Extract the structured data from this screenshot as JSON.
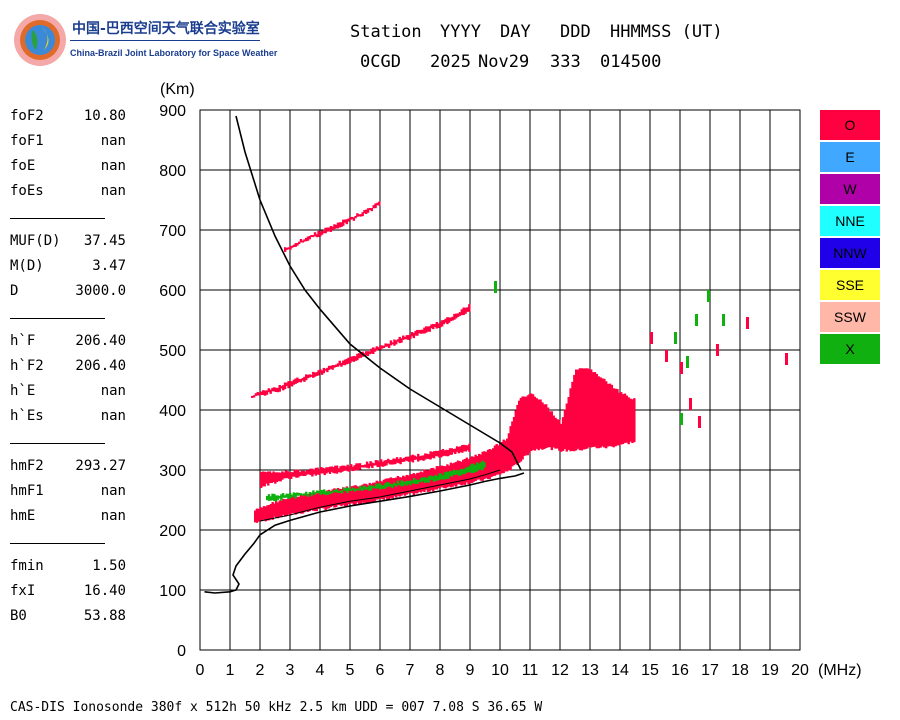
{
  "header": {
    "logo_text": "中国-巴西空间天气联合实验室",
    "logo_subtitle": "China-Brazil Joint Laboratory for Space Weather",
    "col_labels": [
      "Station",
      "YYYY",
      "DAY",
      "DDD",
      "HHMMSS (UT)"
    ],
    "station": "0CGD",
    "year": "2025",
    "day": "Nov29",
    "ddd": "333",
    "time": "014500"
  },
  "params": [
    {
      "label": "foF2",
      "value": "10.80"
    },
    {
      "label": "foF1",
      "value": "nan"
    },
    {
      "label": "foE",
      "value": "nan"
    },
    {
      "label": "foEs",
      "value": "nan"
    },
    {
      "label": "MUF(D)",
      "value": "37.45"
    },
    {
      "label": "M(D)",
      "value": "3.47"
    },
    {
      "label": "D",
      "value": "3000.0"
    },
    {
      "label": "h`F",
      "value": "206.40"
    },
    {
      "label": "h`F2",
      "value": "206.40"
    },
    {
      "label": "h`E",
      "value": "nan"
    },
    {
      "label": "h`Es",
      "value": "nan"
    },
    {
      "label": "hmF2",
      "value": "293.27"
    },
    {
      "label": "hmF1",
      "value": "nan"
    },
    {
      "label": "hmE",
      "value": "nan"
    },
    {
      "label": "fmin",
      "value": "1.50"
    },
    {
      "label": "fxI",
      "value": "16.40"
    },
    {
      "label": "B0",
      "value": "53.88"
    }
  ],
  "legend": [
    {
      "label": "O",
      "color": "#ff0040"
    },
    {
      "label": "E",
      "color": "#40a8ff"
    },
    {
      "label": "W",
      "color": "#b000a8"
    },
    {
      "label": "NNE",
      "color": "#20ffff"
    },
    {
      "label": "NNW",
      "color": "#2000e8"
    },
    {
      "label": "SSE",
      "color": "#ffff30"
    },
    {
      "label": "SSW",
      "color": "#ffb8a8"
    },
    {
      "label": "X",
      "color": "#10b010"
    }
  ],
  "footer": "CAS-DIS Ionosonde 380f x 512h 50 kHz 2.5 km UDD = 007 7.08 S 36.65 W",
  "chart_data": {
    "type": "scatter",
    "title": "",
    "xlabel": "(MHz)",
    "ylabel": "(Km)",
    "xlim": [
      0,
      20
    ],
    "ylim": [
      0,
      900
    ],
    "x_ticks": [
      0,
      1,
      2,
      3,
      4,
      5,
      6,
      7,
      8,
      9,
      10,
      11,
      12,
      13,
      14,
      15,
      16,
      17,
      18,
      19,
      20
    ],
    "y_ticks": [
      0,
      100,
      200,
      300,
      400,
      500,
      600,
      700,
      800,
      900
    ],
    "grid": true,
    "legend_position": "right",
    "series": [
      {
        "name": "O",
        "color": "#ff0040",
        "mode": "band",
        "points": [
          [
            1.8,
            210,
            235
          ],
          [
            2.5,
            218,
            250
          ],
          [
            3.5,
            228,
            262
          ],
          [
            4.5,
            236,
            270
          ],
          [
            5.5,
            244,
            278
          ],
          [
            6.5,
            252,
            290
          ],
          [
            7.5,
            262,
            302
          ],
          [
            8.5,
            272,
            315
          ],
          [
            9.5,
            282,
            333
          ],
          [
            10.2,
            295,
            355
          ],
          [
            10.6,
            310,
            420
          ],
          [
            11.0,
            330,
            430
          ],
          [
            11.5,
            335,
            410
          ],
          [
            12.0,
            330,
            380
          ],
          [
            12.5,
            330,
            470
          ],
          [
            13.0,
            335,
            470
          ],
          [
            13.5,
            335,
            450
          ],
          [
            14.0,
            340,
            430
          ],
          [
            14.5,
            345,
            420
          ]
        ]
      },
      {
        "name": "O",
        "color": "#ff0040",
        "mode": "band",
        "points": [
          [
            1.7,
            418,
            428
          ],
          [
            2.5,
            428,
            440
          ],
          [
            3.5,
            448,
            460
          ],
          [
            4.5,
            468,
            480
          ],
          [
            5.5,
            488,
            500
          ],
          [
            6.5,
            508,
            520
          ],
          [
            7.5,
            528,
            540
          ],
          [
            8.5,
            548,
            562
          ],
          [
            9.0,
            565,
            580
          ]
        ]
      },
      {
        "name": "O",
        "color": "#ff0040",
        "mode": "band",
        "points": [
          [
            2.8,
            662,
            672
          ],
          [
            3.5,
            680,
            690
          ],
          [
            4.5,
            700,
            712
          ],
          [
            5.5,
            725,
            735
          ],
          [
            6.0,
            742,
            752
          ]
        ]
      },
      {
        "name": "X",
        "color": "#10b010",
        "mode": "band",
        "points": [
          [
            2.2,
            245,
            260
          ],
          [
            3.5,
            255,
            265
          ],
          [
            5.0,
            262,
            272
          ],
          [
            6.5,
            270,
            282
          ],
          [
            8.0,
            282,
            295
          ],
          [
            9.5,
            300,
            318
          ]
        ]
      },
      {
        "name": "O",
        "color": "#ff0040",
        "mode": "band",
        "points": [
          [
            2.0,
            270,
            300
          ],
          [
            3.0,
            285,
            300
          ],
          [
            4.0,
            290,
            305
          ],
          [
            5.0,
            297,
            310
          ],
          [
            6.0,
            305,
            318
          ],
          [
            7.0,
            312,
            325
          ],
          [
            8.0,
            320,
            335
          ],
          [
            9.0,
            330,
            345
          ]
        ]
      },
      {
        "name": "O",
        "color": "#ff0040",
        "mode": "scatter",
        "points": [
          [
            15.0,
            520
          ],
          [
            15.5,
            490
          ],
          [
            16.0,
            470
          ],
          [
            16.3,
            410
          ],
          [
            16.6,
            380
          ],
          [
            17.2,
            500
          ],
          [
            18.2,
            545
          ],
          [
            19.5,
            485
          ]
        ]
      },
      {
        "name": "X",
        "color": "#10b010",
        "mode": "scatter",
        "points": [
          [
            9.8,
            605
          ],
          [
            15.8,
            520
          ],
          [
            16.2,
            480
          ],
          [
            16.5,
            550
          ],
          [
            16.9,
            590
          ],
          [
            17.4,
            550
          ],
          [
            16.0,
            385
          ]
        ]
      }
    ],
    "profile": {
      "name": "",
      "x": [
        0.15,
        0.5,
        1.0,
        1.2,
        1.3,
        1.1,
        1.2,
        1.5,
        1.8,
        2.0,
        2.5,
        3.0,
        4.0,
        5.0,
        6.0,
        7.0,
        8.0,
        9.0,
        9.5,
        10.0,
        10.5,
        10.8
      ],
      "y": [
        97,
        95,
        97,
        100,
        110,
        125,
        140,
        160,
        178,
        192,
        208,
        216,
        230,
        240,
        248,
        256,
        265,
        275,
        281,
        286,
        290,
        295
      ]
    },
    "true_height": {
      "name": "",
      "x": [
        1.2,
        1.5,
        2.0,
        2.5,
        3.0,
        3.5,
        4.0,
        5.0,
        6.0,
        7.0,
        8.0,
        9.0,
        9.5,
        10.0,
        10.4,
        10.7
      ],
      "y": [
        890,
        830,
        750,
        690,
        640,
        600,
        568,
        510,
        470,
        435,
        405,
        375,
        360,
        345,
        330,
        300
      ]
    },
    "inner_trace": {
      "name": "",
      "x": [
        2.0,
        3.0,
        4.0,
        5.0,
        6.0,
        7.0,
        8.0,
        9.0,
        9.5,
        10.0
      ],
      "y": [
        215,
        225,
        238,
        248,
        255,
        265,
        275,
        285,
        292,
        300
      ]
    }
  }
}
